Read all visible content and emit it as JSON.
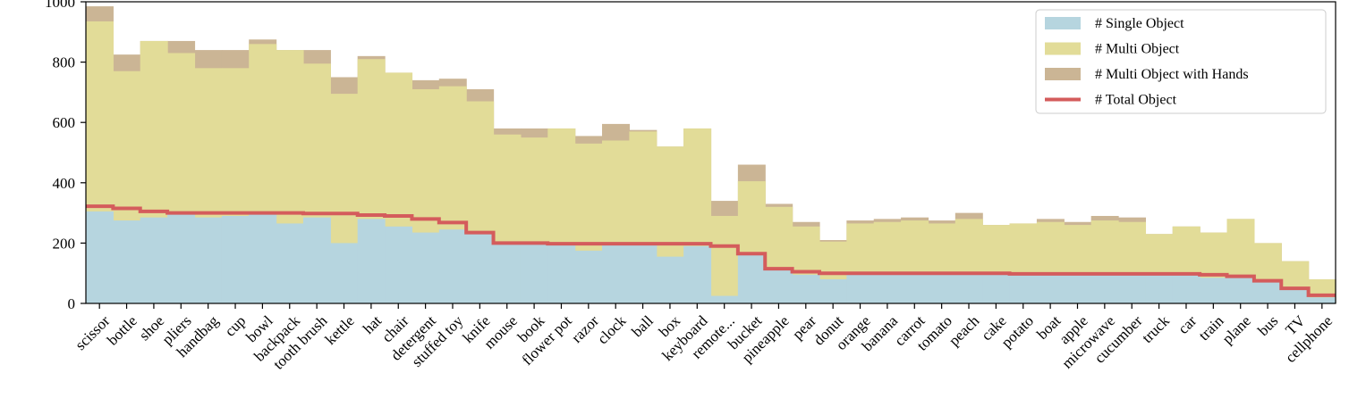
{
  "chart_data": {
    "type": "area",
    "ylim": [
      0,
      1000
    ],
    "yticks": [
      0,
      200,
      400,
      600,
      800,
      1000
    ],
    "grid": false,
    "legend_position": "top-right",
    "categories": [
      "scissor",
      "bottle",
      "shoe",
      "pliers",
      "handbag",
      "cup",
      "bowl",
      "backpack",
      "tooth brush",
      "kettle",
      "hat",
      "chair",
      "detergent",
      "stuffed toy",
      "knife",
      "mouse",
      "book",
      "flower pot",
      "razor",
      "clock",
      "ball",
      "box",
      "keyboard",
      "remote...",
      "bucket",
      "pineapple",
      "pear",
      "donut",
      "orange",
      "banana",
      "carrot",
      "tomato",
      "peach",
      "cake",
      "potato",
      "boat",
      "apple",
      "microwave",
      "cucumber",
      "truck",
      "car",
      "train",
      "plane",
      "bus",
      "TV",
      "cellphone"
    ],
    "series": [
      {
        "name": "# Single Object",
        "color": "#b6d5df",
        "values": [
          305,
          275,
          285,
          295,
          285,
          290,
          295,
          265,
          285,
          200,
          280,
          255,
          235,
          245,
          230,
          200,
          200,
          195,
          175,
          195,
          195,
          155,
          190,
          25,
          160,
          110,
          95,
          80,
          95,
          95,
          95,
          95,
          95,
          95,
          95,
          95,
          95,
          95,
          95,
          95,
          95,
          85,
          85,
          70,
          45,
          20
        ]
      },
      {
        "name": "# Multi Object",
        "color": "#e2dc98",
        "values": [
          935,
          770,
          870,
          830,
          780,
          780,
          860,
          840,
          795,
          695,
          810,
          765,
          710,
          720,
          670,
          560,
          550,
          580,
          530,
          540,
          570,
          520,
          580,
          290,
          405,
          320,
          255,
          205,
          265,
          270,
          275,
          265,
          280,
          260,
          265,
          270,
          260,
          275,
          270,
          230,
          255,
          235,
          280,
          200,
          140,
          80
        ]
      },
      {
        "name": "# Multi Object with Hands",
        "color": "#cbb595",
        "values": [
          985,
          825,
          870,
          870,
          840,
          840,
          875,
          840,
          840,
          750,
          820,
          765,
          740,
          745,
          710,
          580,
          580,
          580,
          555,
          595,
          575,
          520,
          580,
          340,
          460,
          330,
          270,
          210,
          275,
          280,
          285,
          275,
          300,
          260,
          265,
          280,
          270,
          290,
          285,
          230,
          255,
          235,
          280,
          200,
          140,
          80
        ]
      },
      {
        "name": "# Total Object",
        "color": "#d45c5c",
        "values": [
          322,
          315,
          305,
          300,
          300,
          300,
          300,
          300,
          298,
          298,
          293,
          290,
          280,
          268,
          235,
          200,
          200,
          198,
          198,
          198,
          198,
          198,
          198,
          190,
          165,
          115,
          105,
          100,
          100,
          100,
          100,
          100,
          100,
          100,
          98,
          98,
          98,
          98,
          98,
          98,
          98,
          95,
          90,
          75,
          50,
          27
        ]
      }
    ],
    "colors": {
      "axis": "#000000",
      "background": "#ffffff"
    }
  }
}
